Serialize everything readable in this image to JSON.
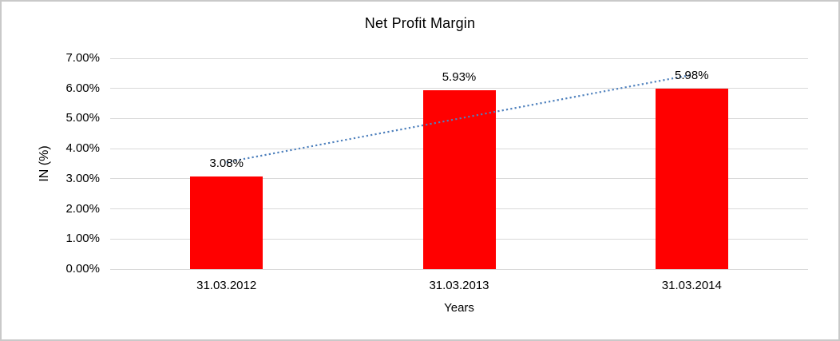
{
  "chart_data": {
    "type": "bar",
    "title": "Net Profit Margin",
    "xlabel": "Years",
    "ylabel": "IN (%)",
    "categories": [
      "31.03.2012",
      "31.03.2013",
      "31.03.2014"
    ],
    "values": [
      3.08,
      5.93,
      5.98
    ],
    "data_labels": [
      "3.08%",
      "5.93%",
      "5.98%"
    ],
    "ylim": [
      0,
      7
    ],
    "ytick_labels": [
      "0.00%",
      "1.00%",
      "2.00%",
      "3.00%",
      "4.00%",
      "5.00%",
      "6.00%",
      "7.00%"
    ],
    "grid": true,
    "legend": false,
    "bar_color": "#FF0000",
    "gridline_color": "#D9D9D9",
    "background_color": "#FFFFFF",
    "border_color": "#C9C9C9",
    "trendline": {
      "style": "dotted",
      "color": "#4F81BD",
      "start_category_index": 0,
      "end_category_index": 2,
      "start_value": 3.55,
      "end_value": 6.45
    }
  }
}
